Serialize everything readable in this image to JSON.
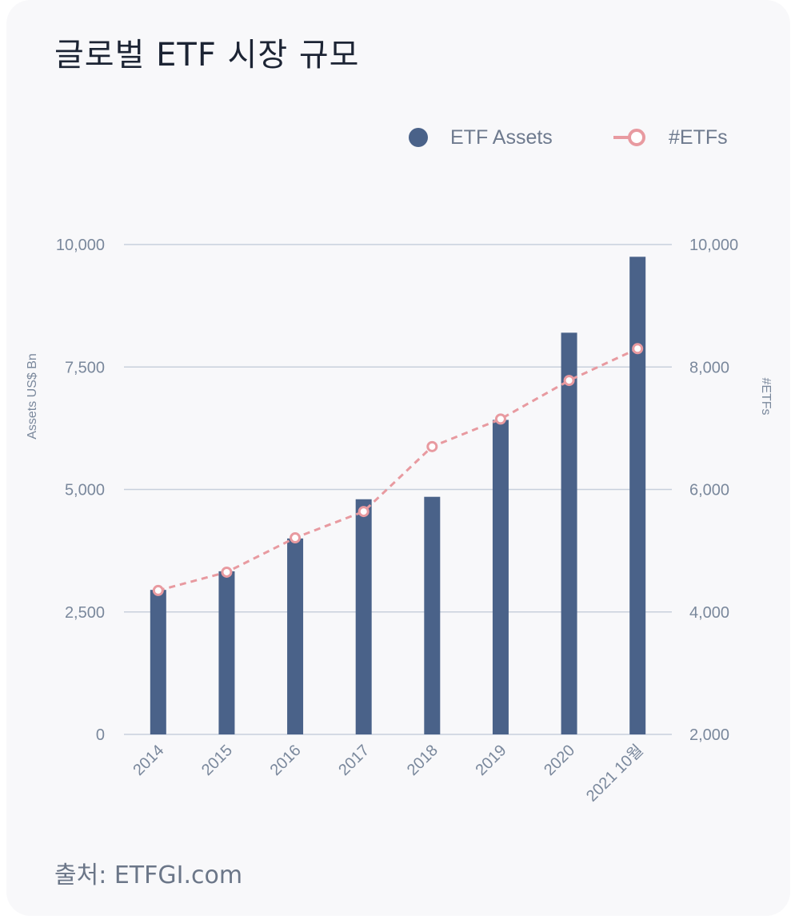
{
  "title": "글로벌 ETF 시장 규모",
  "source": "출처: ETFGI.com",
  "colors": {
    "bar": "#4a6289",
    "line": "#e89aa0",
    "grid": "#c8d0dc",
    "tick_text": "#7a889c"
  },
  "chart_data": {
    "type": "bar",
    "categories": [
      "2014",
      "2015",
      "2016",
      "2017",
      "2018",
      "2019",
      "2020",
      "2021 10월"
    ],
    "series": [
      {
        "name": "ETF Assets",
        "type": "bar",
        "axis": "left",
        "values": [
          2950,
          3330,
          4000,
          4800,
          4850,
          6420,
          8200,
          9750
        ]
      },
      {
        "name": "#ETFs",
        "type": "line",
        "axis": "right",
        "style": "dashed",
        "marker": "hollow-circle",
        "values": [
          4350,
          4650,
          5210,
          5640,
          6700,
          7150,
          7780,
          8300
        ]
      }
    ],
    "ylabel_left": "Assets US$ Bn",
    "ylabel_right": "#ETFs",
    "ylim_left": [
      0,
      10000
    ],
    "ylim_right": [
      2000,
      10000
    ],
    "yticks_left": [
      "0",
      "2,500",
      "5,000",
      "7,500",
      "10,000"
    ],
    "yticks_right": [
      "2,000",
      "4,000",
      "6,000",
      "8,000",
      "10,000"
    ],
    "grid": true,
    "legend_position": "top-right"
  }
}
